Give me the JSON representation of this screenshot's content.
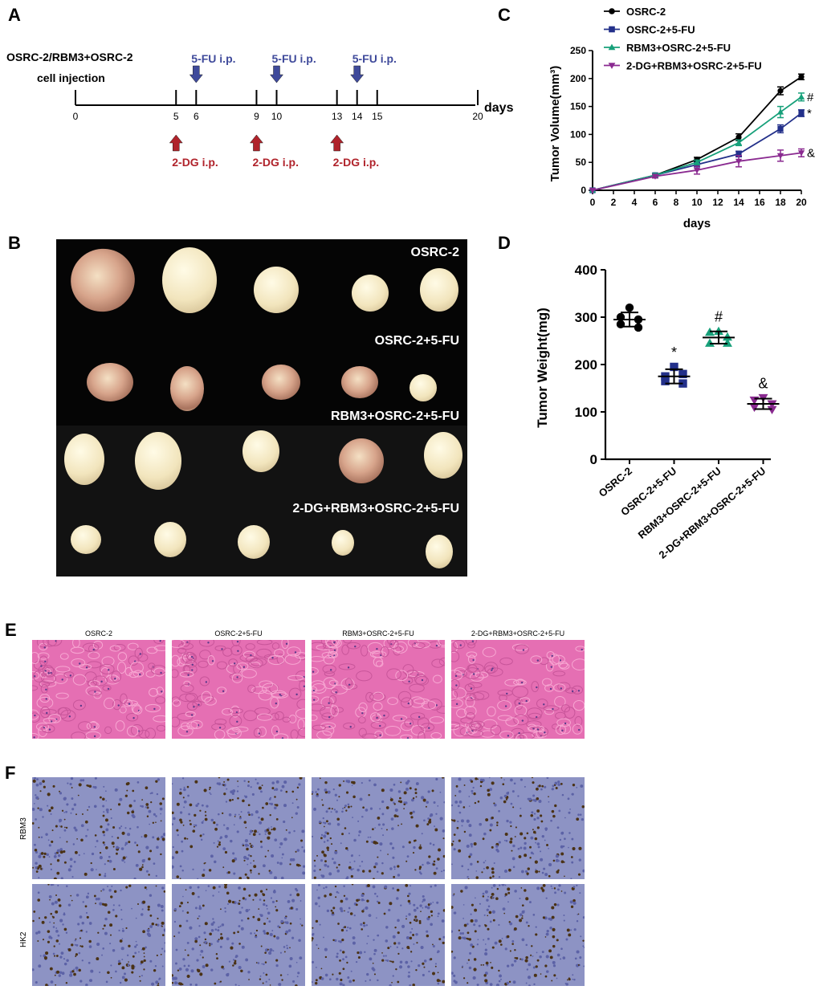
{
  "panels": {
    "a": "A",
    "b": "B",
    "c": "C",
    "d": "D",
    "e": "E",
    "f": "F"
  },
  "timeline": {
    "title_line1": "OSRC-2/RBM3+OSRC-2",
    "title_line2": "cell injection",
    "axis_label": "days",
    "ticks": [
      "0",
      "5",
      "6",
      "9",
      "10",
      "13",
      "14",
      "15",
      "20"
    ],
    "tick_days": [
      0,
      5,
      6,
      9,
      10,
      13,
      14,
      15,
      20
    ],
    "fu_days": [
      6,
      10,
      14
    ],
    "fu_label": "5-FU i.p.",
    "dg_days": [
      5,
      9,
      13
    ],
    "dg_label": "2-DG i.p.",
    "colors": {
      "fu": "#3f4a9b",
      "dg": "#b0232b"
    }
  },
  "photo": {
    "labels": [
      "OSRC-2",
      "OSRC-2+5-FU",
      "RBM3+OSRC-2+5-FU",
      "2-DG+RBM3+OSRC-2+5-FU"
    ]
  },
  "histology": {
    "groups": [
      "OSRC-2",
      "OSRC-2+5-FU",
      "RBM3+OSRC-2+5-FU",
      "2-DG+RBM3+OSRC-2+5-FU"
    ],
    "row_labels": [
      "RBM3",
      "HK2"
    ]
  },
  "chart_data": [
    {
      "type": "line",
      "xlabel": "days",
      "ylabel": "Tumor Volume(mm³)",
      "x": [
        0,
        6,
        10,
        14,
        18,
        20
      ],
      "xticks": [
        0,
        2,
        4,
        6,
        8,
        10,
        12,
        14,
        16,
        18,
        20
      ],
      "yticks": [
        0,
        50,
        100,
        150,
        200,
        250
      ],
      "xlim": [
        0,
        20
      ],
      "ylim": [
        0,
        250
      ],
      "legend_position": "top-left",
      "series": [
        {
          "name": "OSRC-2",
          "marker": "circle",
          "color": "#000000",
          "values": [
            0,
            27,
            55,
            95,
            178,
            203
          ],
          "err": [
            0,
            3,
            4,
            6,
            7,
            5
          ],
          "annotation": ""
        },
        {
          "name": "OSRC-2+5-FU",
          "marker": "square",
          "color": "#23308a",
          "values": [
            0,
            27,
            46,
            65,
            110,
            138
          ],
          "err": [
            0,
            3,
            4,
            5,
            7,
            6
          ],
          "annotation": "*"
        },
        {
          "name": "RBM3+OSRC-2+5-FU",
          "marker": "triangle-up",
          "color": "#17a07a",
          "values": [
            0,
            27,
            50,
            85,
            140,
            167
          ],
          "err": [
            0,
            3,
            4,
            5,
            10,
            7
          ],
          "annotation": "#"
        },
        {
          "name": "2-DG+RBM3+OSRC-2+5-FU",
          "marker": "triangle-down",
          "color": "#8a2a90",
          "values": [
            0,
            25,
            36,
            52,
            62,
            67
          ],
          "err": [
            0,
            3,
            7,
            10,
            10,
            7
          ],
          "annotation": "&"
        }
      ]
    },
    {
      "type": "scatter",
      "ylabel": "Tumor Weight(mg)",
      "yticks": [
        0,
        100,
        200,
        300,
        400
      ],
      "ylim": [
        0,
        400
      ],
      "categories": [
        "OSRC-2",
        "OSRC-2+5-FU",
        "RBM3+OSRC-2+5-FU",
        "2-DG+RBM3+OSRC-2+5-FU"
      ],
      "series": [
        {
          "name": "OSRC-2",
          "marker": "circle",
          "color": "#000000",
          "points": [
            320,
            300,
            295,
            285,
            278
          ],
          "mean": 295,
          "sd": 15,
          "annotation": ""
        },
        {
          "name": "OSRC-2+5-FU",
          "marker": "square",
          "color": "#23308a",
          "points": [
            195,
            175,
            180,
            165,
            160
          ],
          "mean": 175,
          "sd": 15,
          "annotation": "*"
        },
        {
          "name": "RBM3+OSRC-2+5-FU",
          "marker": "triangle-up",
          "color": "#17a07a",
          "points": [
            270,
            268,
            258,
            245,
            245
          ],
          "mean": 257,
          "sd": 13,
          "annotation": "#"
        },
        {
          "name": "2-DG+RBM3+OSRC-2+5-FU",
          "marker": "triangle-down",
          "color": "#8a2a90",
          "points": [
            130,
            125,
            117,
            110,
            105
          ],
          "mean": 117,
          "sd": 11,
          "annotation": "&"
        }
      ]
    }
  ]
}
